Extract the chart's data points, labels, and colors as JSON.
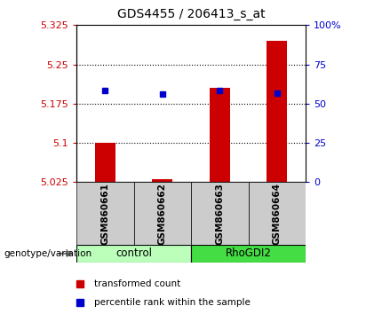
{
  "title": "GDS4455 / 206413_s_at",
  "samples": [
    "GSM860661",
    "GSM860662",
    "GSM860663",
    "GSM860664"
  ],
  "groups": [
    "control",
    "control",
    "RhoGDI2",
    "RhoGDI2"
  ],
  "bar_values": [
    5.1,
    5.03,
    5.205,
    5.295
  ],
  "blue_dot_values": [
    5.2,
    5.193,
    5.2,
    5.195
  ],
  "ymin": 5.025,
  "ymax": 5.325,
  "yticks": [
    5.025,
    5.1,
    5.175,
    5.25,
    5.325
  ],
  "ytick_labels": [
    "5.025",
    "5.1",
    "5.175",
    "5.25",
    "5.325"
  ],
  "right_yticks_pct": [
    0,
    25,
    50,
    75,
    100
  ],
  "right_ytick_labels": [
    "0",
    "25",
    "50",
    "75",
    "100%"
  ],
  "bar_color": "#cc0000",
  "dot_color": "#0000cc",
  "bar_bottom": 5.025,
  "control_color": "#bbffbb",
  "rhodgi2_color": "#44dd44",
  "label_bg": "#cccccc",
  "legend_items": [
    "transformed count",
    "percentile rank within the sample"
  ],
  "legend_colors": [
    "#cc0000",
    "#0000cc"
  ]
}
